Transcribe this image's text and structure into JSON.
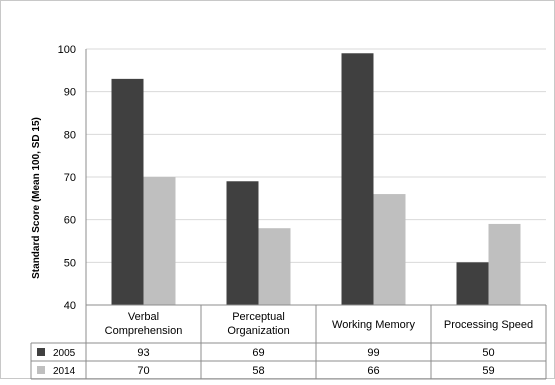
{
  "chart_data": {
    "type": "bar",
    "ylabel": "Standard Score (Mean 100, SD 15)",
    "ylim": [
      40,
      100
    ],
    "yticks": [
      40,
      50,
      60,
      70,
      80,
      90,
      100
    ],
    "grid": true,
    "legend": "data-table-left",
    "categories": [
      [
        "Verbal",
        "Comprehension"
      ],
      [
        "Perceptual",
        "Organization"
      ],
      [
        "Working Memory"
      ],
      [
        "Processing Speed"
      ]
    ],
    "series": [
      {
        "name": "2005",
        "color": "#404040",
        "values": [
          93,
          69,
          99,
          50
        ]
      },
      {
        "name": "2014",
        "color": "#bfbfbf",
        "values": [
          70,
          58,
          66,
          59
        ]
      }
    ]
  }
}
